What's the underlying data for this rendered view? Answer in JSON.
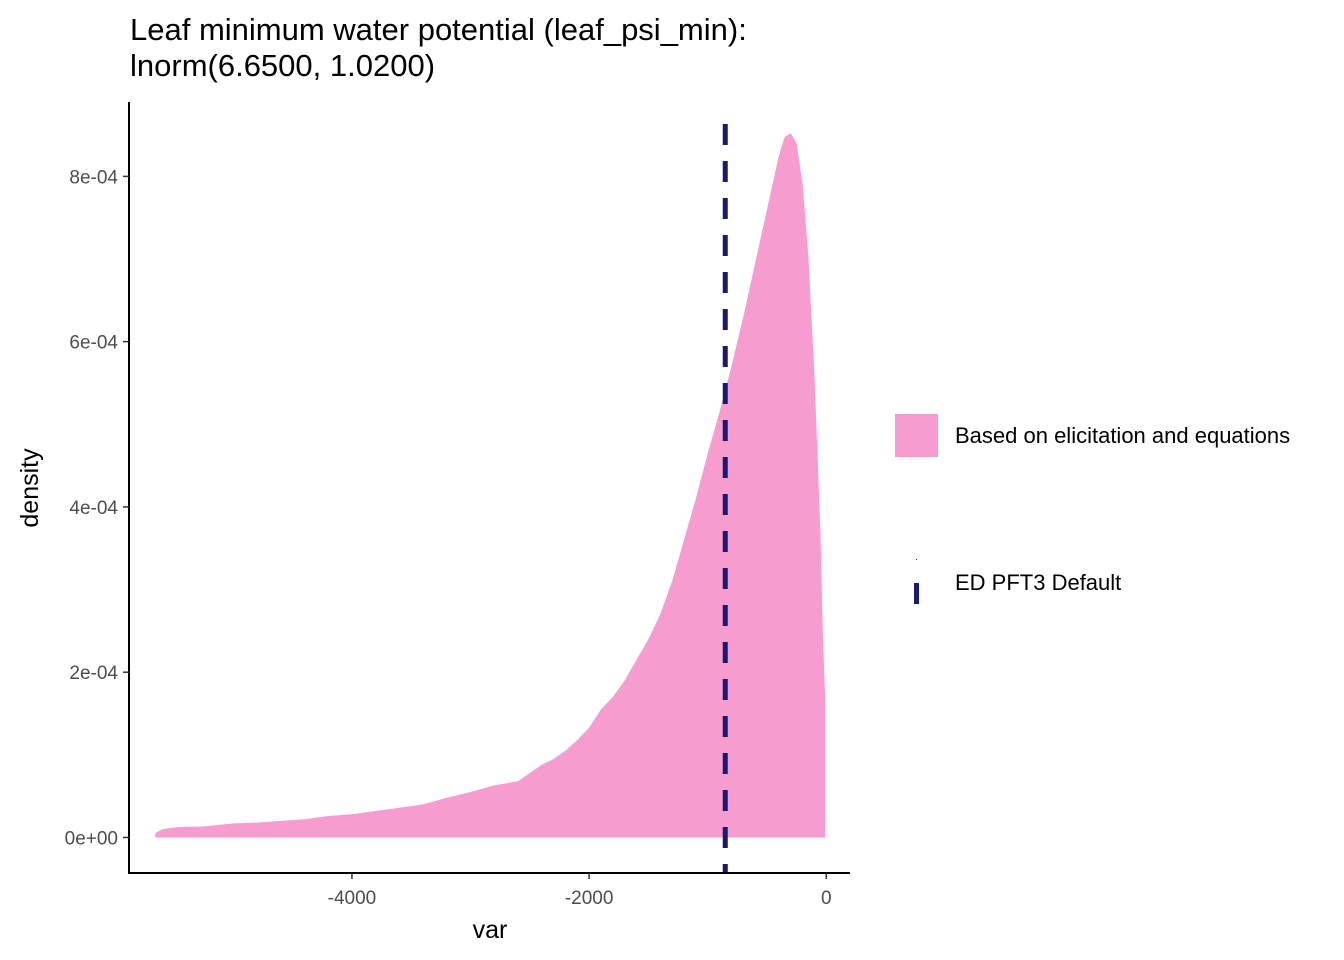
{
  "chart_data": {
    "type": "area",
    "title_line1": "Leaf minimum water potential (leaf_psi_min):",
    "title_line2": "lnorm(6.6500, 1.0200)",
    "xlabel": "var",
    "ylabel": "density",
    "xlim": [
      -5880,
      200
    ],
    "ylim": [
      -4.3e-05,
      0.00089
    ],
    "x_ticks": [
      -4000,
      -2000,
      0
    ],
    "x_tick_labels": [
      "-4000",
      "-2000",
      "0"
    ],
    "y_ticks": [
      0,
      0.0002,
      0.0004,
      0.0006,
      0.0008
    ],
    "y_tick_labels": [
      "0e+00",
      "2e-04",
      "4e-04",
      "6e-04",
      "8e-04"
    ],
    "grid": false,
    "legend_position": "right",
    "series": [
      {
        "name": "Based on elicitation and equations",
        "kind": "density-area",
        "color": "#F79CCF",
        "x": [
          -5660,
          -5600,
          -5500,
          -5400,
          -5300,
          -5200,
          -5000,
          -4800,
          -4600,
          -4400,
          -4200,
          -4000,
          -3800,
          -3600,
          -3400,
          -3200,
          -3000,
          -2800,
          -2600,
          -2500,
          -2400,
          -2300,
          -2200,
          -2100,
          -2000,
          -1900,
          -1800,
          -1700,
          -1600,
          -1500,
          -1400,
          -1300,
          -1200,
          -1100,
          -1000,
          -900,
          -800,
          -700,
          -600,
          -500,
          -400,
          -350,
          -300,
          -250,
          -200,
          -150,
          -100,
          -50,
          -30,
          -10
        ],
        "y": [
          5e-06,
          1e-05,
          1.2e-05,
          1.3e-05,
          1.3e-05,
          1.4e-05,
          1.7e-05,
          1.8e-05,
          2e-05,
          2.2e-05,
          2.6e-05,
          2.8e-05,
          3.2e-05,
          3.6e-05,
          4e-05,
          4.8e-05,
          5.5e-05,
          6.3e-05,
          6.8e-05,
          7.8e-05,
          8.8e-05,
          9.5e-05,
          0.000105,
          0.000118,
          0.000133,
          0.000155,
          0.00017,
          0.00019,
          0.000215,
          0.00024,
          0.00027,
          0.00031,
          0.00036,
          0.00041,
          0.000465,
          0.000515,
          0.00057,
          0.00063,
          0.000695,
          0.00076,
          0.000825,
          0.000848,
          0.000852,
          0.00084,
          0.00079,
          0.0007,
          0.00056,
          0.00037,
          0.00025,
          0.00017
        ]
      },
      {
        "name": "ED PFT3 Default",
        "kind": "vline",
        "color": "#191970",
        "x": -852
      }
    ]
  }
}
